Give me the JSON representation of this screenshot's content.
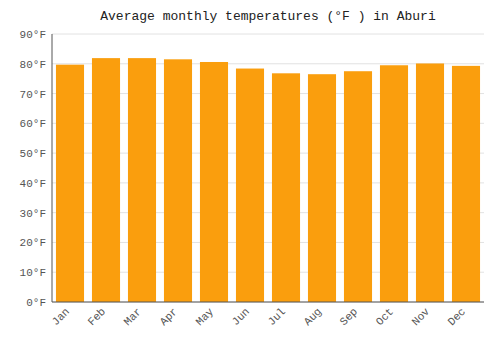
{
  "chart_data": {
    "type": "bar",
    "title": "Average monthly temperatures (°F ) in Aburi",
    "categories": [
      "Jan",
      "Feb",
      "Mar",
      "Apr",
      "May",
      "Jun",
      "Jul",
      "Aug",
      "Sep",
      "Oct",
      "Nov",
      "Dec"
    ],
    "values": [
      79.7,
      81.9,
      81.9,
      81.5,
      80.6,
      78.4,
      76.8,
      76.5,
      77.5,
      79.5,
      80.1,
      79.3
    ],
    "color": "#FA9E0D",
    "ylim": [
      0,
      90
    ],
    "yticks": [
      {
        "value": 0,
        "label": "0°F"
      },
      {
        "value": 10,
        "label": "10°F"
      },
      {
        "value": 20,
        "label": "20°F"
      },
      {
        "value": 30,
        "label": "30°F"
      },
      {
        "value": 40,
        "label": "40°F"
      },
      {
        "value": 50,
        "label": "50°F"
      },
      {
        "value": 60,
        "label": "60°F"
      },
      {
        "value": 70,
        "label": "70°F"
      },
      {
        "value": 80,
        "label": "80°F"
      },
      {
        "value": 90,
        "label": "90°F"
      }
    ],
    "grid": true
  }
}
